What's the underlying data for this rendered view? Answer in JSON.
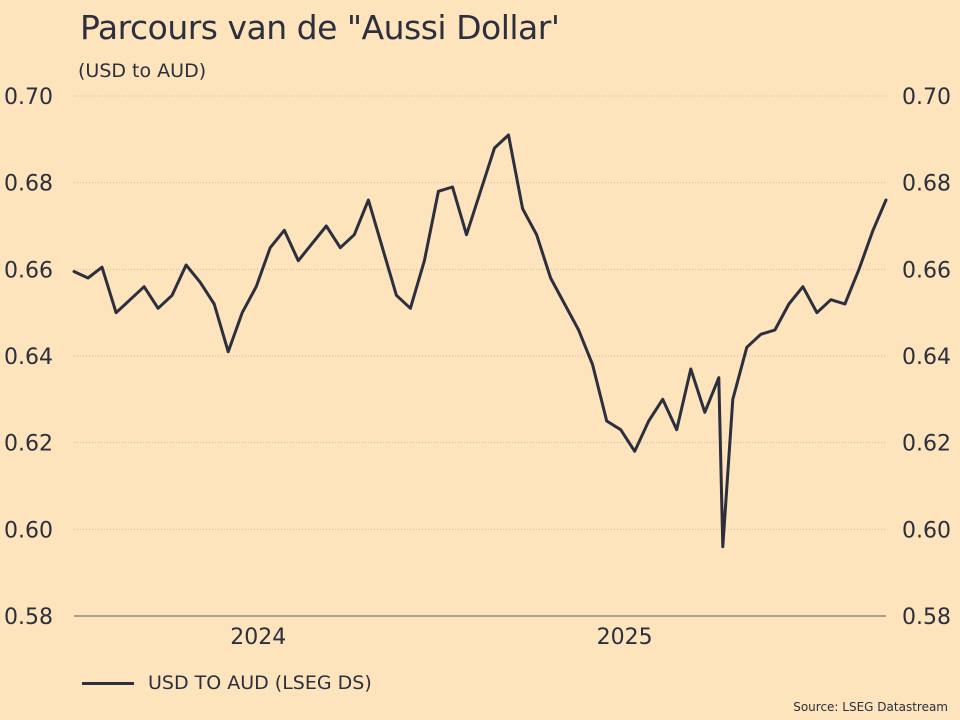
{
  "title": "Parcours van de \"Aussi Dollar'",
  "subtitle": "(USD to AUD)",
  "source": "Source: LSEG Datastream",
  "colors": {
    "background": "#fde4bc",
    "line": "#2b2f3e",
    "grid": "#c9bda6"
  },
  "chart_data": {
    "type": "line",
    "title": "Parcours van de \"Aussi Dollar'",
    "subtitle": "(USD to AUD)",
    "xlabel": "",
    "ylabel": "",
    "x_ticks": [
      "2024",
      "2025"
    ],
    "x_range": [
      "2023-07-01",
      "2025-09-19"
    ],
    "ylim": [
      0.58,
      0.7
    ],
    "y_ticks": [
      "0.70",
      "0.68",
      "0.66",
      "0.64",
      "0.62",
      "0.60",
      "0.58"
    ],
    "y_ticks_right": [
      "0.70",
      "0.68",
      "0.66",
      "0.64",
      "0.62",
      "0.60",
      "0.58"
    ],
    "grid": "horizontal dotted",
    "legend_placement": "bottom-left",
    "series": [
      {
        "name": "USD TO AUD (LSEG DS)",
        "x": [
          "2023-07-01",
          "2023-07-15",
          "2023-07-29",
          "2023-08-12",
          "2023-08-26",
          "2023-09-09",
          "2023-09-23",
          "2023-10-07",
          "2023-10-21",
          "2023-11-04",
          "2023-11-18",
          "2023-12-02",
          "2023-12-16",
          "2023-12-30",
          "2024-01-13",
          "2024-01-27",
          "2024-02-10",
          "2024-02-24",
          "2024-03-09",
          "2024-03-23",
          "2024-04-06",
          "2024-04-20",
          "2024-05-04",
          "2024-05-18",
          "2024-06-01",
          "2024-06-15",
          "2024-06-29",
          "2024-07-13",
          "2024-07-27",
          "2024-08-10",
          "2024-08-24",
          "2024-09-07",
          "2024-09-21",
          "2024-10-05",
          "2024-10-19",
          "2024-11-02",
          "2024-11-16",
          "2024-11-30",
          "2024-12-14",
          "2024-12-28",
          "2025-01-11",
          "2025-01-25",
          "2025-02-08",
          "2025-02-22",
          "2025-03-08",
          "2025-03-22",
          "2025-04-05",
          "2025-04-09",
          "2025-04-19",
          "2025-05-03",
          "2025-05-17",
          "2025-05-31",
          "2025-06-14",
          "2025-06-28",
          "2025-07-12",
          "2025-07-26",
          "2025-08-09",
          "2025-08-23",
          "2025-09-06",
          "2025-09-19"
        ],
        "values": [
          0.6595,
          0.658,
          0.6605,
          0.65,
          0.653,
          0.656,
          0.651,
          0.654,
          0.661,
          0.657,
          0.652,
          0.641,
          0.65,
          0.656,
          0.665,
          0.669,
          0.662,
          0.666,
          0.67,
          0.665,
          0.668,
          0.676,
          0.665,
          0.654,
          0.651,
          0.662,
          0.678,
          0.679,
          0.668,
          0.678,
          0.688,
          0.691,
          0.674,
          0.668,
          0.658,
          0.652,
          0.646,
          0.638,
          0.625,
          0.623,
          0.618,
          0.625,
          0.63,
          0.623,
          0.637,
          0.627,
          0.635,
          0.596,
          0.63,
          0.642,
          0.645,
          0.646,
          0.652,
          0.656,
          0.65,
          0.653,
          0.652,
          0.66,
          0.669,
          0.676
        ]
      }
    ]
  }
}
